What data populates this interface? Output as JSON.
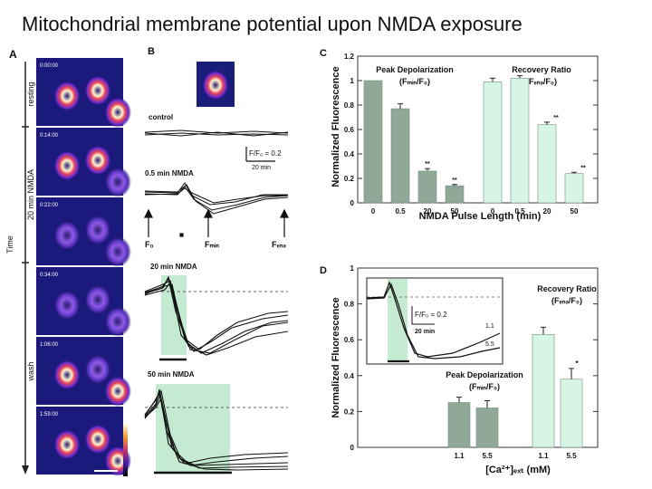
{
  "slide": {
    "title": "Mitochondrial membrane potential upon NMDA exposure"
  },
  "panel_a": {
    "letter": "A",
    "timestamps": [
      "0:00:00",
      "0:14:00",
      "0:22:00",
      "0:34:00",
      "1:06:00",
      "1:59:00"
    ],
    "side_labels": [
      "resting",
      "20 min NMDA",
      "Time",
      "wash"
    ]
  },
  "panel_b": {
    "letter": "B",
    "label_control": "control",
    "label_05": "0.5 min NMDA",
    "label_20": "20 min NMDA",
    "label_50": "50 min NMDA",
    "scale_y": "F/F₀ = 0.2",
    "scale_x": "20 min",
    "arrow_labels": [
      "F₀",
      "Fₘᵢₙ",
      "Fₑₙₔ"
    ]
  },
  "panel_c": {
    "letter": "C",
    "ylabel": "Normalized Fluorescence",
    "xlabel": "NMDA Pulse Length (min)",
    "group1_label": "Peak Depolarization",
    "group1_sub": "(Fₘᵢₙ/F₀)",
    "group2_label": "Recovery Ratio",
    "group2_sub": "(Fₑₙₔ/F₀)",
    "star_marks": [
      "**",
      "**",
      "**",
      "**"
    ]
  },
  "panel_d": {
    "letter": "D",
    "ylabel": "Normalized Fluorescence",
    "xlabel": "[Ca²⁺]ₑₓₜ  (mM)",
    "inset_scale_y": "F/F₀ = 0.2",
    "inset_scale_x": "20 min",
    "inset_trace_labels": [
      "1.1",
      "5.5"
    ],
    "group1_label": "Peak Depolarization",
    "group1_sub": "(Fₘᵢₙ/F₀)",
    "group2_label": "Recovery Ratio",
    "group2_sub": "(Fₑₙₔ/F₀)",
    "star_marks": [
      "*"
    ]
  },
  "colors": {
    "dark_bar": "#8fa898",
    "light_bar": "#d6f5e4",
    "shade": "#c5ead2"
  },
  "chart_data": [
    {
      "id": "C",
      "type": "bar",
      "title": "",
      "xlabel": "NMDA Pulse Length (min)",
      "ylabel": "Normalized Fluorescence",
      "ylim": [
        0,
        1.2
      ],
      "yticks": [
        0,
        0.2,
        0.4,
        0.6,
        0.8,
        1.0,
        1.2
      ],
      "series": [
        {
          "name": "Peak Depolarization (Fmin/F0)",
          "categories": [
            "0",
            "0.5",
            "20",
            "50"
          ],
          "values": [
            1.0,
            0.77,
            0.26,
            0.14
          ],
          "errors": [
            0.0,
            0.04,
            0.02,
            0.01
          ]
        },
        {
          "name": "Recovery Ratio (Fend/F0)",
          "categories": [
            "0",
            "0.5",
            "20",
            "50"
          ],
          "values": [
            0.99,
            1.02,
            0.64,
            0.24
          ],
          "errors": [
            0.03,
            0.02,
            0.02,
            0.01
          ]
        }
      ]
    },
    {
      "id": "D",
      "type": "bar",
      "title": "",
      "xlabel": "[Ca2+]ext (mM)",
      "ylabel": "Normalized Fluorescence",
      "ylim": [
        0,
        1.0
      ],
      "yticks": [
        0,
        0.2,
        0.4,
        0.6,
        0.8,
        1.0
      ],
      "series": [
        {
          "name": "Peak Depolarization (Fmin/F0)",
          "categories": [
            "1.1",
            "5.5"
          ],
          "values": [
            0.25,
            0.22
          ],
          "errors": [
            0.03,
            0.04
          ]
        },
        {
          "name": "Recovery Ratio (Fend/F0)",
          "categories": [
            "1.1",
            "5.5"
          ],
          "values": [
            0.63,
            0.38
          ],
          "errors": [
            0.04,
            0.06
          ]
        }
      ]
    }
  ]
}
